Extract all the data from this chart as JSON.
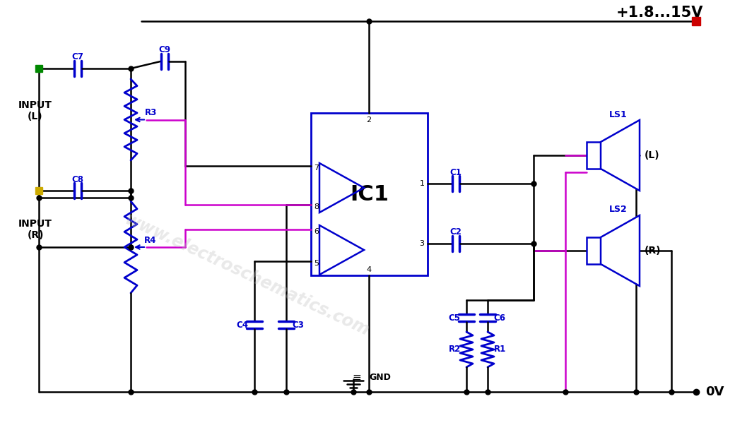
{
  "bg_color": "#ffffff",
  "line_color_black": "#000000",
  "line_color_blue": "#0000cc",
  "line_color_magenta": "#cc00cc",
  "line_color_red": "#cc0000",
  "line_color_green": "#008800",
  "line_color_yellow": "#ccaa00",
  "voltage_label": "+1.8...15V",
  "gnd_label": "GND",
  "ov_label": "0V",
  "ic_label": "IC1",
  "ls1_label": "LS1",
  "ls2_label": "LS2",
  "watermark": "www.electroschematics.com"
}
